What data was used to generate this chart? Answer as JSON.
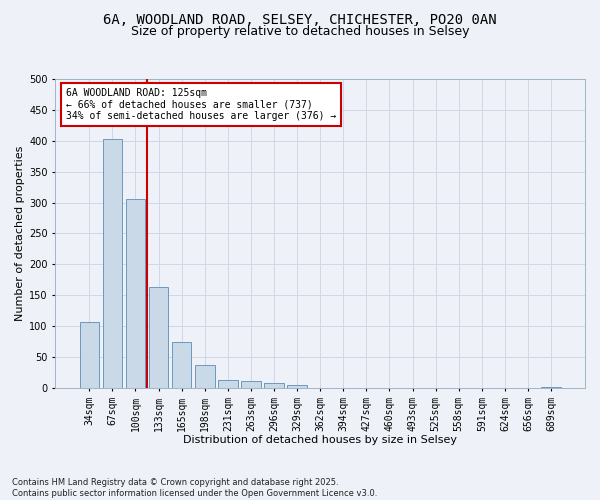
{
  "title_line1": "6A, WOODLAND ROAD, SELSEY, CHICHESTER, PO20 0AN",
  "title_line2": "Size of property relative to detached houses in Selsey",
  "xlabel": "Distribution of detached houses by size in Selsey",
  "ylabel": "Number of detached properties",
  "footer_line1": "Contains HM Land Registry data © Crown copyright and database right 2025.",
  "footer_line2": "Contains public sector information licensed under the Open Government Licence v3.0.",
  "categories": [
    "34sqm",
    "67sqm",
    "100sqm",
    "133sqm",
    "165sqm",
    "198sqm",
    "231sqm",
    "263sqm",
    "296sqm",
    "329sqm",
    "362sqm",
    "394sqm",
    "427sqm",
    "460sqm",
    "493sqm",
    "525sqm",
    "558sqm",
    "591sqm",
    "624sqm",
    "656sqm",
    "689sqm"
  ],
  "values": [
    106,
    403,
    305,
    164,
    75,
    37,
    13,
    11,
    8,
    4,
    0,
    0,
    0,
    0,
    0,
    0,
    0,
    0,
    0,
    0,
    2
  ],
  "bar_color": "#c9d9e8",
  "bar_edge_color": "#5b8db8",
  "vline_color": "#cc0000",
  "vline_label_title": "6A WOODLAND ROAD: 125sqm",
  "vline_label_line2": "← 66% of detached houses are smaller (737)",
  "vline_label_line3": "34% of semi-detached houses are larger (376) →",
  "annotation_box_color": "#cc0000",
  "annotation_bg": "#ffffff",
  "ylim": [
    0,
    500
  ],
  "yticks": [
    0,
    50,
    100,
    150,
    200,
    250,
    300,
    350,
    400,
    450,
    500
  ],
  "grid_color": "#d0d8e8",
  "bg_color": "#eef2f8",
  "title1_fontsize": 10,
  "title2_fontsize": 9,
  "axis_label_fontsize": 8,
  "tick_fontsize": 7,
  "annotation_fontsize": 7,
  "footer_fontsize": 6
}
